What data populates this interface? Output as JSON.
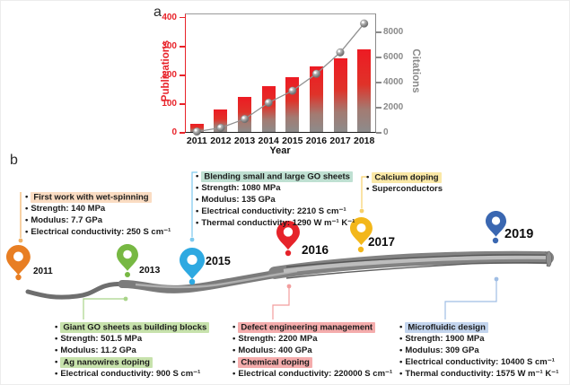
{
  "panels": {
    "a_label": "a",
    "b_label": "b"
  },
  "chart_data": {
    "type": "bar",
    "title": "",
    "x": [
      "2011",
      "2012",
      "2013",
      "2014",
      "2015",
      "2016",
      "2017",
      "2018"
    ],
    "xlabel": "Year",
    "series": [
      {
        "name": "Publications",
        "type": "bar",
        "axis": "left",
        "values": [
          30,
          80,
          125,
          163,
          195,
          232,
          260,
          291
        ]
      },
      {
        "name": "Citations",
        "type": "line-scatter",
        "axis": "right",
        "values": [
          100,
          400,
          1100,
          2400,
          3350,
          4700,
          6400,
          8700
        ]
      }
    ],
    "left_axis": {
      "label": "Publications",
      "color": "#E8232A",
      "ticks": [
        0,
        100,
        200,
        300,
        400
      ],
      "range": [
        0,
        415
      ]
    },
    "right_axis": {
      "label": "Citations",
      "color": "#8A8A8A",
      "ticks": [
        0,
        2000,
        4000,
        6000,
        8000
      ],
      "range": [
        0,
        9500
      ]
    },
    "bar_colors": {
      "top": "#ED1B23",
      "bottom": "#8C8C8C"
    },
    "line_color": "#919191",
    "grid": false,
    "legend": "none"
  },
  "timeline": {
    "pins": [
      {
        "year": "2011",
        "color": "#E87E23",
        "connector_color": "#F2B267"
      },
      {
        "year": "2013",
        "color": "#77B843",
        "connector_color": "#A9D489"
      },
      {
        "year": "2015",
        "color": "#2EA9E1",
        "connector_color": "#7DC9EE"
      },
      {
        "year": "2016",
        "color": "#E6232A",
        "connector_color": "#F29E9E"
      },
      {
        "year": "2017",
        "color": "#F3B71A",
        "connector_color": "#F6D06A"
      },
      {
        "year": "2019",
        "color": "#3A67B1",
        "connector_color": "#9FBDE4"
      }
    ],
    "boxes": [
      {
        "id": "wet-spinning-2011",
        "lines": [
          {
            "text": "First work with wet-spinning",
            "highlight": "#FADCC2"
          },
          {
            "text": "Strength: 140 MPa"
          },
          {
            "text": "Modulus: 7.7 GPa"
          },
          {
            "text": "Electrical conductivity: 250 S cm⁻¹"
          }
        ]
      },
      {
        "id": "blending-2015",
        "lines": [
          {
            "text": "Blending small and large GO sheets",
            "highlight": "#BFE0D2"
          },
          {
            "text": "Strength: 1080 MPa"
          },
          {
            "text": "Modulus: 135 GPa"
          },
          {
            "text": "Electrical conductivity: 2210 S cm⁻¹"
          },
          {
            "text": "Thermal conductivity: 1290 W m⁻¹ K⁻¹"
          }
        ]
      },
      {
        "id": "calcium-2017",
        "lines": [
          {
            "text": "Calcium doping",
            "highlight": "#FAE8A6"
          },
          {
            "text": "Superconductors"
          }
        ]
      },
      {
        "id": "giant-go-2013",
        "lines": [
          {
            "text": "Giant GO sheets as building blocks",
            "highlight": "#C7E2AC"
          },
          {
            "text": "Strength: 501.5 MPa"
          },
          {
            "text": "Modulus: 11.2 GPa"
          },
          {
            "text": "Ag nanowires doping",
            "highlight": "#C7E2AC"
          },
          {
            "text": "Electrical conductivity: 900 S cm⁻¹"
          }
        ]
      },
      {
        "id": "defect-2016",
        "lines": [
          {
            "text": "Defect engineering management",
            "highlight": "#F4ACAC"
          },
          {
            "text": "Strength: 2200 MPa"
          },
          {
            "text": "Modulus: 400 GPa"
          },
          {
            "text": "Chemical doping",
            "highlight": "#F4ACAC"
          },
          {
            "text": "Electrical conductivity: 220000 S cm⁻¹"
          }
        ]
      },
      {
        "id": "microfluidic-2019",
        "lines": [
          {
            "text": "Microfluidic design",
            "highlight": "#C3D5EE"
          },
          {
            "text": "Strength: 1900 MPa"
          },
          {
            "text": "Modulus: 309 GPa"
          },
          {
            "text": "Electrical conductivity: 10400 S cm⁻¹"
          },
          {
            "text": "Thermal conductivity: 1575 W m⁻¹ K⁻¹"
          }
        ]
      }
    ]
  }
}
